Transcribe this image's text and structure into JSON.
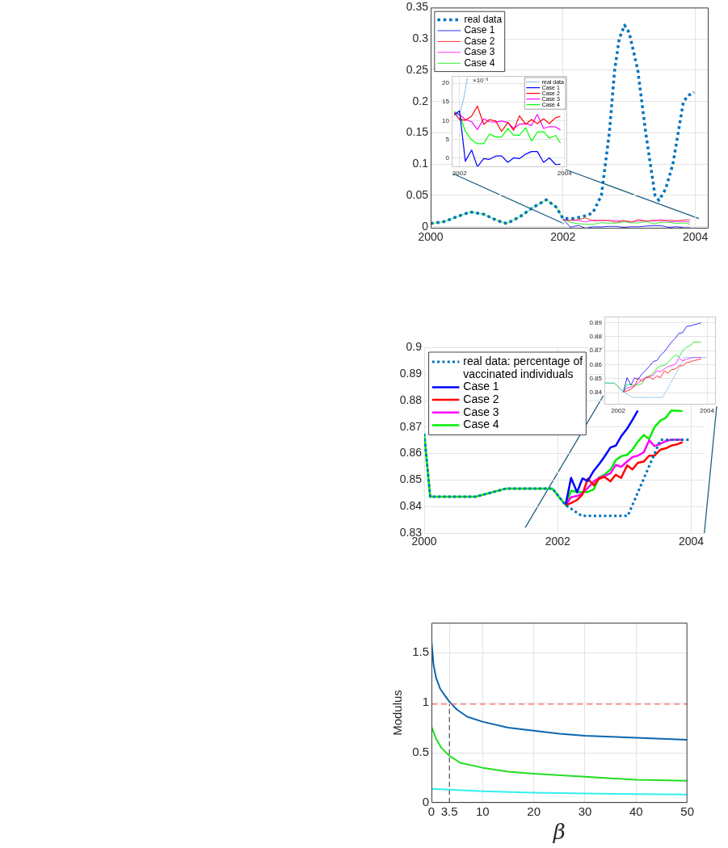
{
  "chart_data": [
    {
      "type": "line",
      "xlim": [
        2000,
        2004.2
      ],
      "xticks": [
        2000,
        2002,
        2004
      ],
      "ylim": [
        -0.003,
        0.35
      ],
      "yticks": [
        0,
        0.05,
        0.1,
        0.15,
        0.2,
        0.25,
        0.3,
        0.35
      ],
      "grid": true,
      "legend": "top left",
      "series": [
        {
          "name": "real data",
          "color": "#0072bd",
          "line_style": "dotted",
          "x": [
            2000,
            2000.2,
            2000.4,
            2000.6,
            2000.8,
            2001,
            2001.15,
            2001.35,
            2001.55,
            2001.75,
            2001.9,
            2002,
            2002.15,
            2002.3,
            2002.45,
            2002.58,
            2002.7,
            2002.78,
            2002.85,
            2002.93,
            2003,
            2003.13,
            2003.25,
            2003.39,
            2003.45,
            2003.55,
            2003.66,
            2003.74,
            2003.82,
            2003.9,
            2003.98
          ],
          "values": [
            0.005,
            0.008,
            0.016,
            0.0235,
            0.02,
            0.01,
            0.005,
            0.016,
            0.031,
            0.043,
            0.031,
            0.013,
            0.013,
            0.016,
            0.022,
            0.05,
            0.15,
            0.25,
            0.3,
            0.322,
            0.31,
            0.25,
            0.15,
            0.05,
            0.042,
            0.06,
            0.1,
            0.15,
            0.2,
            0.21,
            0.215
          ]
        },
        {
          "name": "Case 1",
          "color": "#3333ff",
          "x": [
            2002,
            2002.11,
            2002.23,
            2002.34,
            2002.46,
            2002.57,
            2002.69,
            2002.8,
            2002.92,
            2003.03,
            2003.14,
            2003.26,
            2003.37,
            2003.48,
            2003.6,
            2003.71,
            2003.83,
            2003.92
          ],
          "values": [
            0.0126,
            -0.0009,
            0.0021,
            -0.0024,
            -0.0002,
            -0.0004,
            0.0005,
            0.0005,
            -0.0012,
            0,
            -0.0002,
            0.001,
            0.0017,
            0.0017,
            -0.0012,
            0,
            -0.0018,
            -0.0017
          ]
        },
        {
          "name": "Case 2",
          "color": "#ff3333",
          "x": [
            2002,
            2002.11,
            2002.23,
            2002.34,
            2002.46,
            2002.57,
            2002.69,
            2002.8,
            2002.92,
            2003.03,
            2003.14,
            2003.26,
            2003.37,
            2003.48,
            2003.6,
            2003.71,
            2003.83,
            2003.92
          ],
          "values": [
            0.0103,
            0.0101,
            0.0112,
            0.0139,
            0.009,
            0.0103,
            0.0099,
            0.0071,
            0.0095,
            0.0074,
            0.0113,
            0.009,
            0.0103,
            0.0092,
            0.0105,
            0.0092,
            0.0108,
            0.0111
          ]
        },
        {
          "name": "Case 3",
          "color": "#ff33ff",
          "x": [
            2002,
            2002.11,
            2002.23,
            2002.34,
            2002.46,
            2002.57,
            2002.69,
            2002.8,
            2002.92,
            2003.03,
            2003.14,
            2003.26,
            2003.37,
            2003.48,
            2003.6,
            2003.71,
            2003.83,
            2003.92
          ],
          "values": [
            0.0116,
            0.0103,
            0.0097,
            0.0076,
            0.0105,
            0.0097,
            0.0096,
            0.0099,
            0.0095,
            0.0079,
            0.009,
            0.0092,
            0.0087,
            0.0117,
            0.0079,
            0.0084,
            0.0083,
            0.0075
          ]
        },
        {
          "name": "Case 4",
          "color": "#33ee33",
          "x": [
            2000,
            2000.2,
            2000.4,
            2000.6,
            2000.8,
            2001,
            2001.15,
            2001.35,
            2001.55,
            2001.75,
            2001.9,
            2002,
            2002.11,
            2002.23,
            2002.34,
            2002.46,
            2002.57,
            2002.69,
            2002.8,
            2002.92,
            2003.03,
            2003.14,
            2003.26,
            2003.37,
            2003.48,
            2003.6,
            2003.71,
            2003.83,
            2003.92
          ],
          "values": [
            0.005,
            0.008,
            0.016,
            0.0235,
            0.02,
            0.01,
            0.005,
            0.016,
            0.031,
            0.043,
            0.031,
            0.0117,
            0.0071,
            0.0048,
            0.0038,
            0.0038,
            0.0064,
            0.0056,
            0.0056,
            0.0079,
            0.0061,
            0.0061,
            0.0081,
            0.0045,
            0.0069,
            0.007,
            0.0053,
            0.006,
            0.004
          ]
        }
      ]
    },
    {
      "type": "line",
      "xlim": [
        2001.85,
        2004.05
      ],
      "xticks": [
        2002,
        2004
      ],
      "ylim": [
        -2.5,
        22
      ],
      "yticks": [
        0,
        5,
        10,
        15,
        20
      ],
      "grid": true,
      "legend": "top right",
      "annotations": [
        "×10⁻³"
      ],
      "series": [
        {
          "name": "real data",
          "color": "#0072bd",
          "line_style": "dotted",
          "x": [
            2001.9,
            2002,
            2002.08,
            2002.15
          ],
          "values": [
            11.3,
            11.7,
            16,
            21.5
          ]
        },
        {
          "name": "Case 1",
          "color": "#0000ff",
          "x": [
            2001.9,
            2002,
            2002.11,
            2002.23,
            2002.34,
            2002.46,
            2002.57,
            2002.69,
            2002.8,
            2002.92,
            2003.03,
            2003.14,
            2003.26,
            2003.37,
            2003.48,
            2003.6,
            2003.71,
            2003.83,
            2003.92
          ],
          "values": [
            11.6,
            12.6,
            -0.9,
            2.1,
            -2.4,
            -0.2,
            -0.4,
            0.5,
            0.5,
            -1.2,
            0,
            -0.2,
            1.0,
            1.7,
            1.7,
            -1.2,
            0,
            -1.8,
            -1.7
          ]
        },
        {
          "name": "Case 2",
          "color": "#ff0000",
          "x": [
            2001.9,
            2002,
            2002.11,
            2002.23,
            2002.34,
            2002.46,
            2002.57,
            2002.69,
            2002.8,
            2002.92,
            2003.03,
            2003.14,
            2003.26,
            2003.37,
            2003.48,
            2003.6,
            2003.71,
            2003.83,
            2003.92
          ],
          "values": [
            12.1,
            10.3,
            10.1,
            11.2,
            13.9,
            9.0,
            10.3,
            9.9,
            7.1,
            9.5,
            7.4,
            11.3,
            9.0,
            10.3,
            9.2,
            10.5,
            9.2,
            10.8,
            11.1
          ]
        },
        {
          "name": "Case 3",
          "color": "#ff00ff",
          "x": [
            2001.9,
            2002,
            2002.11,
            2002.23,
            2002.34,
            2002.46,
            2002.57,
            2002.69,
            2002.8,
            2002.92,
            2003.03,
            2003.14,
            2003.26,
            2003.37,
            2003.48,
            2003.6,
            2003.71,
            2003.83,
            2003.92
          ],
          "values": [
            12.1,
            11.6,
            10.3,
            9.7,
            7.6,
            10.5,
            9.7,
            9.6,
            9.9,
            9.5,
            7.9,
            9.0,
            9.2,
            8.7,
            11.7,
            7.9,
            8.4,
            8.3,
            7.5
          ]
        },
        {
          "name": "Case 4",
          "color": "#00ff00",
          "x": [
            2001.9,
            2002,
            2002.11,
            2002.23,
            2002.34,
            2002.46,
            2002.57,
            2002.69,
            2002.8,
            2002.92,
            2003.03,
            2003.14,
            2003.26,
            2003.37,
            2003.48,
            2003.6,
            2003.71,
            2003.83,
            2003.92
          ],
          "values": [
            12.4,
            11.7,
            7.1,
            4.8,
            3.8,
            3.8,
            6.4,
            5.6,
            5.6,
            7.9,
            6.1,
            6.1,
            8.1,
            4.5,
            6.9,
            7.0,
            5.3,
            6.0,
            4.0
          ]
        }
      ]
    },
    {
      "type": "line",
      "xlim": [
        2000,
        2004.2
      ],
      "xticks": [
        2000,
        2002,
        2004
      ],
      "ylim": [
        0.83,
        0.9
      ],
      "yticks": [
        0.83,
        0.84,
        0.85,
        0.86,
        0.87,
        0.88,
        0.89,
        0.9
      ],
      "grid": true,
      "legend": "top left",
      "series": [
        {
          "name": "real data: percentage of vaccinated individuals",
          "color": "#0072bd",
          "line_style": "dotted",
          "x": [
            2000,
            2000.02,
            2000.09,
            2000.77,
            2001.23,
            2001.92,
            2002.12,
            2002.36,
            2003.05,
            2003.54,
            2004
          ],
          "values": [
            0.8675,
            0.8622,
            0.8437,
            0.8437,
            0.8468,
            0.8468,
            0.8405,
            0.8365,
            0.8365,
            0.8652,
            0.8652
          ]
        },
        {
          "name": "Case 1",
          "color": "#0000ff",
          "x": [
            2002.12,
            2002.2,
            2002.29,
            2002.37,
            2002.45,
            2002.54,
            2002.62,
            2002.7,
            2002.79,
            2002.87,
            2002.95,
            2003.04,
            2003.12,
            2003.2
          ],
          "values": [
            0.8408,
            0.8508,
            0.8454,
            0.8506,
            0.8496,
            0.8535,
            0.856,
            0.8588,
            0.8623,
            0.863,
            0.8665,
            0.8694,
            0.8727,
            0.8762
          ]
        },
        {
          "name": "Case 2",
          "color": "#ff0000",
          "x": [
            2002.12,
            2002.2,
            2002.29,
            2002.37,
            2002.45,
            2002.54,
            2002.62,
            2002.7,
            2002.79,
            2002.87,
            2002.95,
            2003.04,
            2003.12,
            2003.2,
            2003.29,
            2003.37,
            2003.45,
            2003.54,
            2003.62,
            2003.7,
            2003.79,
            2003.87
          ],
          "values": [
            0.8405,
            0.8413,
            0.8425,
            0.8445,
            0.8505,
            0.848,
            0.8505,
            0.8512,
            0.8495,
            0.852,
            0.8508,
            0.8555,
            0.854,
            0.8565,
            0.857,
            0.8592,
            0.8592,
            0.8615,
            0.862,
            0.863,
            0.8635,
            0.8643
          ]
        },
        {
          "name": "Case 3",
          "color": "#ff00ff",
          "x": [
            2002.12,
            2002.2,
            2002.29,
            2002.37,
            2002.45,
            2002.54,
            2002.62,
            2002.7,
            2002.79,
            2002.87,
            2002.95,
            2003.04,
            2003.12,
            2003.2,
            2003.29,
            2003.37,
            2003.45,
            2003.54,
            2003.62,
            2003.7,
            2003.79,
            2003.87
          ],
          "values": [
            0.8405,
            0.8435,
            0.844,
            0.845,
            0.847,
            0.8495,
            0.8508,
            0.8515,
            0.8525,
            0.8557,
            0.855,
            0.857,
            0.8587,
            0.8592,
            0.8605,
            0.865,
            0.8628,
            0.8637,
            0.8647,
            0.8652,
            0.8652,
            0.8652
          ]
        },
        {
          "name": "Case 4",
          "color": "#00ee00",
          "x": [
            2000,
            2000.02,
            2000.09,
            2000.77,
            2001.23,
            2001.92,
            2002.12,
            2002.2,
            2002.29,
            2002.37,
            2002.45,
            2002.54,
            2002.62,
            2002.7,
            2002.79,
            2002.87,
            2002.95,
            2003.04,
            2003.12,
            2003.2,
            2003.29,
            2003.37,
            2003.45,
            2003.54,
            2003.62,
            2003.7,
            2003.79,
            2003.87
          ],
          "values": [
            0.8675,
            0.8622,
            0.8437,
            0.8437,
            0.8468,
            0.8468,
            0.8405,
            0.846,
            0.8455,
            0.8455,
            0.8455,
            0.8465,
            0.851,
            0.852,
            0.854,
            0.8575,
            0.859,
            0.8595,
            0.8615,
            0.8645,
            0.867,
            0.8655,
            0.87,
            0.8725,
            0.8735,
            0.8762,
            0.8762,
            0.876
          ]
        }
      ]
    },
    {
      "type": "line",
      "xlim": [
        2001.69,
        2004.2
      ],
      "xticks": [
        2002,
        2004
      ],
      "ylim": [
        0.8315,
        0.8944
      ],
      "yticks": [
        0.84,
        0.85,
        0.86,
        0.87,
        0.88,
        0.89
      ],
      "grid": true,
      "series": [
        {
          "color": "#3399dd",
          "line_style": "dotted",
          "x": [
            2001.7,
            2001.92,
            2002.12,
            2002.33,
            2003,
            2003.5,
            2004
          ],
          "values": [
            0.847,
            0.8468,
            0.8405,
            0.8366,
            0.8366,
            0.8652,
            0.8652
          ]
        },
        {
          "color": "#3333ff",
          "x": [
            2002.12,
            2002.2,
            2002.29,
            2002.37,
            2002.45,
            2002.54,
            2002.62,
            2002.7,
            2002.79,
            2002.87,
            2002.95,
            2003.04,
            2003.12,
            2003.2,
            2003.29,
            2003.37,
            2003.45,
            2003.54,
            2003.62,
            2003.7,
            2003.79,
            2003.87
          ],
          "values": [
            0.8408,
            0.8508,
            0.8454,
            0.8506,
            0.8496,
            0.8535,
            0.856,
            0.8588,
            0.8623,
            0.863,
            0.8665,
            0.8694,
            0.8727,
            0.8762,
            0.879,
            0.8825,
            0.8829,
            0.8873,
            0.8877,
            0.8885,
            0.8892,
            0.89
          ]
        },
        {
          "color": "#ff3333",
          "x": [
            2002.12,
            2002.2,
            2002.29,
            2002.37,
            2002.45,
            2002.54,
            2002.62,
            2002.7,
            2002.79,
            2002.87,
            2002.95,
            2003.04,
            2003.12,
            2003.2,
            2003.29,
            2003.37,
            2003.45,
            2003.54,
            2003.62,
            2003.7,
            2003.79,
            2003.87
          ],
          "values": [
            0.8405,
            0.8413,
            0.8425,
            0.8445,
            0.8505,
            0.848,
            0.8505,
            0.8512,
            0.8495,
            0.852,
            0.8508,
            0.8555,
            0.854,
            0.8565,
            0.857,
            0.8592,
            0.8592,
            0.8615,
            0.862,
            0.863,
            0.8635,
            0.8643
          ]
        },
        {
          "color": "#ff33ff",
          "x": [
            2002.12,
            2002.2,
            2002.29,
            2002.37,
            2002.45,
            2002.54,
            2002.62,
            2002.7,
            2002.79,
            2002.87,
            2002.95,
            2003.04,
            2003.12,
            2003.2,
            2003.29,
            2003.37,
            2003.45,
            2003.54,
            2003.62,
            2003.7,
            2003.79,
            2003.87
          ],
          "values": [
            0.8405,
            0.8435,
            0.844,
            0.845,
            0.847,
            0.8495,
            0.8508,
            0.8515,
            0.8525,
            0.8557,
            0.855,
            0.857,
            0.8587,
            0.8592,
            0.8605,
            0.865,
            0.8628,
            0.8637,
            0.8647,
            0.8652,
            0.8652,
            0.8652
          ]
        },
        {
          "color": "#33ee33",
          "x": [
            2001.7,
            2001.92,
            2002.12,
            2002.2,
            2002.29,
            2002.37,
            2002.45,
            2002.54,
            2002.62,
            2002.7,
            2002.79,
            2002.87,
            2002.95,
            2003.04,
            2003.12,
            2003.2,
            2003.29,
            2003.37,
            2003.45,
            2003.54,
            2003.62,
            2003.7,
            2003.79,
            2003.87
          ],
          "values": [
            0.847,
            0.8468,
            0.8405,
            0.846,
            0.8455,
            0.8455,
            0.8455,
            0.8465,
            0.851,
            0.852,
            0.854,
            0.8575,
            0.859,
            0.8595,
            0.8615,
            0.8645,
            0.867,
            0.8655,
            0.87,
            0.8725,
            0.8735,
            0.8762,
            0.8762,
            0.876
          ]
        }
      ]
    },
    {
      "type": "line",
      "xlabel": "β",
      "ylabel": "Modulus",
      "xlim": [
        0,
        50
      ],
      "xticks": [
        0,
        3.5,
        10,
        20,
        30,
        40,
        50
      ],
      "ylim": [
        0,
        1.8
      ],
      "yticks": [
        0,
        0.5,
        1,
        1.5
      ],
      "grid": true,
      "ref_lines": [
        {
          "axis": "y",
          "value": 0.985,
          "color": "#ff6666",
          "line_style": "dashed"
        }
      ],
      "series": [
        {
          "color": "#0b66b0",
          "x": [
            0,
            0.4,
            0.9,
            1.7,
            2.5,
            3.5,
            5,
            7,
            10,
            15,
            20,
            25,
            30,
            35,
            40,
            45,
            50
          ],
          "values": [
            1.62,
            1.38,
            1.25,
            1.14,
            1.08,
            1.01,
            0.93,
            0.86,
            0.81,
            0.75,
            0.72,
            0.69,
            0.67,
            0.66,
            0.65,
            0.64,
            0.63
          ]
        },
        {
          "color": "#22dd22",
          "x": [
            0,
            0.9,
            1.9,
            3.5,
            5.6,
            10,
            15,
            20,
            30,
            40,
            50
          ],
          "values": [
            0.76,
            0.64,
            0.55,
            0.47,
            0.4,
            0.35,
            0.31,
            0.29,
            0.26,
            0.23,
            0.22
          ]
        },
        {
          "color": "#33eeee",
          "x": [
            0,
            10,
            20,
            30,
            40,
            50
          ],
          "values": [
            0.14,
            0.115,
            0.1,
            0.093,
            0.087,
            0.082
          ]
        },
        {
          "color": "#333333",
          "line_style": "dashed",
          "x": [
            3.5,
            3.5
          ],
          "values": [
            0,
            0.985
          ]
        }
      ]
    }
  ]
}
